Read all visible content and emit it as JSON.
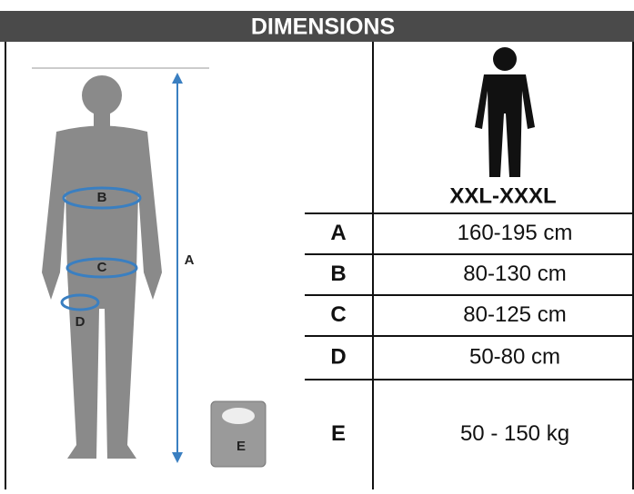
{
  "header": {
    "title": "DIMENSIONS"
  },
  "size": "XXL-XXXL",
  "figure": {
    "labels": [
      "B",
      "C",
      "D",
      "A",
      "E"
    ]
  },
  "table": {
    "rows": [
      [
        "A",
        "160-195 cm"
      ],
      [
        "B",
        "80-130 cm"
      ],
      [
        "C",
        "80-125 cm"
      ],
      [
        "D",
        "50-80 cm"
      ],
      [
        "E",
        "50 - 150 kg"
      ]
    ]
  }
}
